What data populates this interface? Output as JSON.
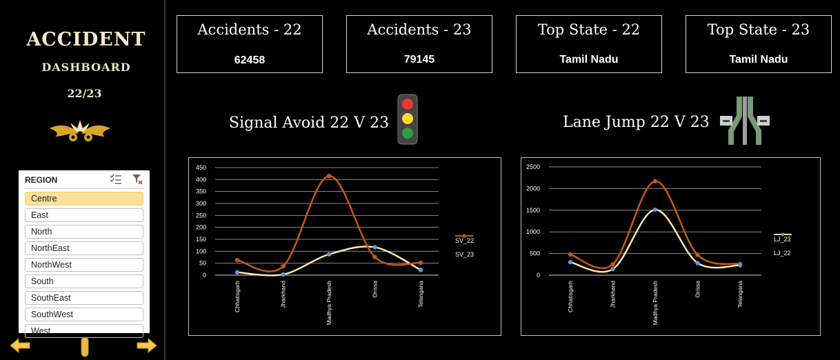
{
  "brand": {
    "title": "ACCIDENT",
    "subtitle": "DASHBOARD",
    "year": "22/23"
  },
  "slicer": {
    "header": "REGION",
    "items": [
      "Centre",
      "East",
      "North",
      "NorthEast",
      "NorthWest",
      "South",
      "SouthEast",
      "SouthWest",
      "West"
    ],
    "selected": "Centre"
  },
  "kpis": [
    {
      "title": "Accidents - 22",
      "value": "62458"
    },
    {
      "title": "Accidents - 23",
      "value": "79145"
    },
    {
      "title": "Top State - 22",
      "value": "Tamil Nadu"
    },
    {
      "title": "Top State - 23",
      "value": "Tamil Nadu"
    }
  ],
  "sections": {
    "signal_title": "Signal Avoid 22 V 23",
    "lane_title": "Lane Jump 22 V 23"
  },
  "colors": {
    "series_22": "#ffe9a6",
    "series_23": "#c55a11",
    "marker_22": "#5b9bd5",
    "gold": "#e2b12c"
  },
  "icons": [
    "trophy-emblem-icon",
    "traffic-light-icon",
    "lane-road-icon",
    "arrow-left-icon",
    "scroll-bar-icon",
    "arrow-right-icon",
    "multi-select-icon",
    "clear-filter-icon"
  ],
  "chart_data": [
    {
      "type": "line",
      "categories": [
        "Chhatisgarh",
        "Jharkhand",
        "Madhya Pradesh",
        "Orissa",
        "Telangana"
      ],
      "ylim": [
        0,
        450
      ],
      "yticks": [
        0,
        50,
        100,
        150,
        200,
        250,
        300,
        350,
        400,
        450
      ],
      "series": [
        {
          "name": "SV_22",
          "values": [
            12,
            3,
            87,
            117,
            22
          ]
        },
        {
          "name": "SV_23",
          "values": [
            63,
            37,
            415,
            76,
            52
          ]
        }
      ]
    },
    {
      "type": "line",
      "categories": [
        "Chhatisgarh",
        "Jharkhand",
        "Madhya Pradesh",
        "Orissa",
        "Telangana"
      ],
      "ylim": [
        0,
        2500
      ],
      "yticks": [
        0,
        500,
        1000,
        1500,
        2000,
        2500
      ],
      "series": [
        {
          "name": "LJ_23",
          "values": [
            480,
            250,
            2170,
            470,
            260
          ]
        },
        {
          "name": "LJ_22",
          "values": [
            300,
            140,
            1510,
            280,
            230
          ]
        }
      ]
    }
  ]
}
